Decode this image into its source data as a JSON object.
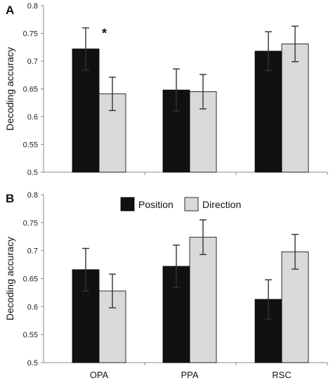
{
  "colors": {
    "position": "#111111",
    "direction": "#d9d9d9",
    "axis": "#888888",
    "errorbar": "#333333"
  },
  "legend": {
    "position_label": "Position",
    "direction_label": "Direction"
  },
  "chart_data": [
    {
      "panel": "A",
      "type": "bar",
      "ylabel": "Decoding accuracy",
      "ylim": [
        0.5,
        0.8
      ],
      "yticks": [
        "0.5",
        "0.55",
        "0.6",
        "0.65",
        "0.7",
        "0.75",
        "0.8"
      ],
      "categories": [
        "OPA",
        "PPA",
        "RSC"
      ],
      "show_category_labels": false,
      "series": [
        {
          "name": "Position",
          "values": [
            0.722,
            0.648,
            0.718
          ],
          "errors": [
            0.038,
            0.038,
            0.035
          ]
        },
        {
          "name": "Direction",
          "values": [
            0.641,
            0.645,
            0.731
          ],
          "errors": [
            0.03,
            0.031,
            0.032
          ]
        }
      ],
      "annotations": [
        {
          "text": "*",
          "category": "OPA"
        }
      ]
    },
    {
      "panel": "B",
      "type": "bar",
      "ylabel": "Decoding accuracy",
      "ylim": [
        0.5,
        0.8
      ],
      "yticks": [
        "0.5",
        "0.55",
        "0.6",
        "0.65",
        "0.7",
        "0.75",
        "0.8"
      ],
      "categories": [
        "OPA",
        "PPA",
        "RSC"
      ],
      "show_category_labels": true,
      "series": [
        {
          "name": "Position",
          "values": [
            0.666,
            0.672,
            0.613
          ],
          "errors": [
            0.038,
            0.038,
            0.035
          ]
        },
        {
          "name": "Direction",
          "values": [
            0.628,
            0.724,
            0.698
          ],
          "errors": [
            0.03,
            0.031,
            0.031
          ]
        }
      ],
      "annotations": []
    }
  ]
}
